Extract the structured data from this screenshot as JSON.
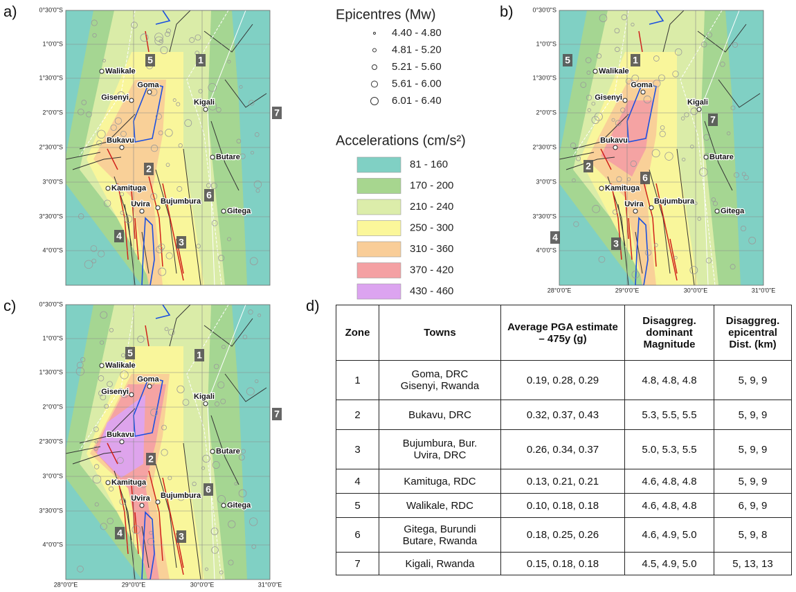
{
  "panel_labels": [
    "a)",
    "b)",
    "c)",
    "d)"
  ],
  "map_axes": {
    "lat_ticks": [
      "0°30'0\"S",
      "1°0'0\"S",
      "1°30'0\"S",
      "2°0'0\"S",
      "2°30'0\"S",
      "3°0'0\"S",
      "3°30'0\"S",
      "4°0'0\"S"
    ],
    "lon_ticks": [
      "28°0'0\"E",
      "29°0'0\"E",
      "30°0'0\"E",
      "31°0'0\"E"
    ]
  },
  "towns": [
    "Walikale",
    "Goma",
    "Gisenyi",
    "Kigali",
    "Bukavu",
    "Butare",
    "Kamituga",
    "Uvira",
    "Bujumbura",
    "Gitega"
  ],
  "zones": [
    "1",
    "2",
    "3",
    "4",
    "5",
    "6",
    "7"
  ],
  "legend": {
    "epicentres": {
      "title": "Epicentres (Mw)",
      "items": [
        "4.40 - 4.80",
        "4.81 - 5.20",
        "5.21 - 5.60",
        "5.61 - 6.00",
        "6.01 - 6.40"
      ]
    },
    "accelerations": {
      "title": "Accelerations (cm/s²)",
      "items": [
        {
          "label": "81 - 160",
          "color": "#80d0c4"
        },
        {
          "label": "170 - 200",
          "color": "#a7d68f"
        },
        {
          "label": "210 - 240",
          "color": "#dcedaa"
        },
        {
          "label": "250 - 300",
          "color": "#fbf79a"
        },
        {
          "label": "310 - 360",
          "color": "#f9cd98"
        },
        {
          "label": "370 - 420",
          "color": "#f4a0a3"
        },
        {
          "label": "430 - 460",
          "color": "#dca4f0"
        }
      ]
    }
  },
  "table": {
    "header": [
      "Zone",
      "Towns",
      "Average PGA estimate – 475y (g)",
      "Disaggreg. dominant Magnitude",
      "Disaggreg. epicentral Dist. (km)"
    ],
    "rows": [
      [
        "1",
        "Goma, DRC\nGisenyi, Rwanda",
        "0.19, 0.28, 0.29",
        "4.8, 4.8, 4.8",
        "5, 9, 9"
      ],
      [
        "2",
        "Bukavu, DRC",
        "0.32, 0.37, 0.43",
        "5.3, 5.5, 5.5",
        "5, 9, 9"
      ],
      [
        "3",
        "Bujumbura, Bur.\nUvira, DRC",
        "0.26, 0.34, 0.37",
        "5.0, 5.3, 5.5",
        "5, 9, 9"
      ],
      [
        "4",
        "Kamituga, RDC",
        "0.13, 0.21, 0.21",
        "4.6, 4.8, 4.8",
        "5, 9, 9"
      ],
      [
        "5",
        "Walikale, RDC",
        "0.10, 0.18, 0.18",
        "4.6, 4.8, 4.8",
        "6, 9, 9"
      ],
      [
        "6",
        "Gitega, Burundi\nButare, Rwanda",
        "0.18, 0.25, 0.26",
        "4.6, 4.9, 5.0",
        "5, 9, 8"
      ],
      [
        "7",
        "Kigali, Rwanda",
        "0.15, 0.18, 0.18",
        "4.5, 4.9, 5.0",
        "5, 13, 13"
      ]
    ]
  }
}
